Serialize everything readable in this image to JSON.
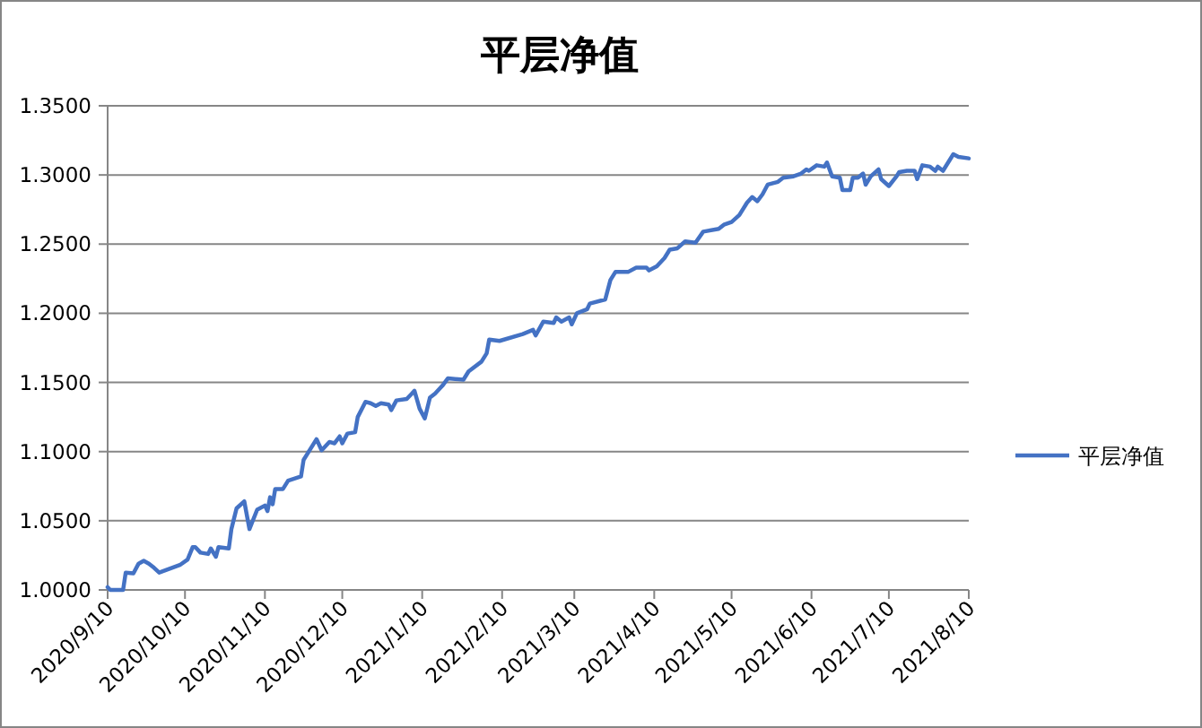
{
  "chart_data": {
    "type": "line",
    "title": "平层净值",
    "x": [
      "2020-09-10",
      "2020-09-11",
      "2020-09-16",
      "2020-09-17",
      "2020-09-20",
      "2020-09-22",
      "2020-09-24",
      "2020-09-26",
      "2020-09-28",
      "2020-09-30",
      "2020-10-08",
      "2020-10-11",
      "2020-10-13",
      "2020-10-14",
      "2020-10-16",
      "2020-10-19",
      "2020-10-20",
      "2020-10-22",
      "2020-10-23",
      "2020-10-27",
      "2020-10-28",
      "2020-10-30",
      "2020-11-02",
      "2020-11-04",
      "2020-11-07",
      "2020-11-10",
      "2020-11-11",
      "2020-11-12",
      "2020-11-13",
      "2020-11-14",
      "2020-11-17",
      "2020-11-19",
      "2020-11-24",
      "2020-11-25",
      "2020-11-30",
      "2020-12-02",
      "2020-12-05",
      "2020-12-07",
      "2020-12-09",
      "2020-12-10",
      "2020-12-12",
      "2020-12-15",
      "2020-12-16",
      "2020-12-19",
      "2020-12-21",
      "2020-12-23",
      "2020-12-25",
      "2020-12-28",
      "2020-12-29",
      "2020-12-31",
      "2021-01-04",
      "2021-01-06",
      "2021-01-07",
      "2021-01-09",
      "2021-01-11",
      "2021-01-13",
      "2021-01-15",
      "2021-01-17",
      "2021-01-18",
      "2021-01-20",
      "2021-01-26",
      "2021-01-28",
      "2021-02-02",
      "2021-02-04",
      "2021-02-05",
      "2021-02-09",
      "2021-02-18",
      "2021-02-22",
      "2021-02-23",
      "2021-02-26",
      "2021-03-02",
      "2021-03-03",
      "2021-03-05",
      "2021-03-08",
      "2021-03-09",
      "2021-03-11",
      "2021-03-15",
      "2021-03-16",
      "2021-03-22",
      "2021-03-24",
      "2021-03-26",
      "2021-03-31",
      "2021-04-03",
      "2021-04-07",
      "2021-04-08",
      "2021-04-11",
      "2021-04-14",
      "2021-04-16",
      "2021-04-19",
      "2021-04-22",
      "2021-04-26",
      "2021-04-29",
      "2021-05-05",
      "2021-05-07",
      "2021-05-10",
      "2021-05-13",
      "2021-05-16",
      "2021-05-18",
      "2021-05-20",
      "2021-05-22",
      "2021-05-24",
      "2021-05-28",
      "2021-05-30",
      "2021-06-03",
      "2021-06-06",
      "2021-06-08",
      "2021-06-09",
      "2021-06-12",
      "2021-06-15",
      "2021-06-16",
      "2021-06-18",
      "2021-06-21",
      "2021-06-22",
      "2021-06-25",
      "2021-06-26",
      "2021-06-28",
      "2021-06-30",
      "2021-07-01",
      "2021-07-03",
      "2021-07-06",
      "2021-07-07",
      "2021-07-10",
      "2021-07-13",
      "2021-07-14",
      "2021-07-17",
      "2021-07-20",
      "2021-07-21",
      "2021-07-23",
      "2021-07-26",
      "2021-07-28",
      "2021-07-29",
      "2021-07-31",
      "2021-08-04",
      "2021-08-06",
      "2021-08-10"
    ],
    "series": [
      {
        "name": "平层净值",
        "color": "#4472c4",
        "values": [
          1.002,
          1.0,
          1.0,
          1.0125,
          1.012,
          1.019,
          1.021,
          1.019,
          1.016,
          1.0125,
          1.018,
          1.022,
          1.031,
          1.031,
          1.027,
          1.026,
          1.03,
          1.024,
          1.031,
          1.03,
          1.044,
          1.059,
          1.064,
          1.044,
          1.058,
          1.061,
          1.057,
          1.067,
          1.062,
          1.073,
          1.073,
          1.079,
          1.082,
          1.094,
          1.109,
          1.101,
          1.107,
          1.106,
          1.111,
          1.106,
          1.113,
          1.114,
          1.125,
          1.136,
          1.135,
          1.133,
          1.135,
          1.134,
          1.13,
          1.137,
          1.138,
          1.142,
          1.144,
          1.131,
          1.124,
          1.139,
          1.142,
          1.146,
          1.148,
          1.153,
          1.152,
          1.158,
          1.165,
          1.171,
          1.181,
          1.18,
          1.185,
          1.188,
          1.184,
          1.194,
          1.193,
          1.197,
          1.194,
          1.197,
          1.192,
          1.2,
          1.203,
          1.207,
          1.21,
          1.224,
          1.23,
          1.23,
          1.233,
          1.233,
          1.231,
          1.234,
          1.24,
          1.246,
          1.247,
          1.252,
          1.251,
          1.259,
          1.261,
          1.264,
          1.266,
          1.271,
          1.28,
          1.284,
          1.281,
          1.286,
          1.293,
          1.295,
          1.298,
          1.299,
          1.301,
          1.304,
          1.303,
          1.307,
          1.306,
          1.309,
          1.299,
          1.298,
          1.289,
          1.289,
          1.298,
          1.298,
          1.301,
          1.293,
          1.299,
          1.304,
          1.297,
          1.292,
          1.299,
          1.302,
          1.303,
          1.303,
          1.297,
          1.307,
          1.306,
          1.303,
          1.306,
          1.303,
          1.315,
          1.313,
          1.312
        ]
      }
    ],
    "xlim": [
      "2020-09-10",
      "2021-08-10"
    ],
    "xticks": [
      {
        "value": "2020-09-10",
        "label": "2020/9/10"
      },
      {
        "value": "2020-10-10",
        "label": "2020/10/10"
      },
      {
        "value": "2020-11-10",
        "label": "2020/11/10"
      },
      {
        "value": "2020-12-10",
        "label": "2020/12/10"
      },
      {
        "value": "2021-01-10",
        "label": "2021/1/10"
      },
      {
        "value": "2021-02-10",
        "label": "2021/2/10"
      },
      {
        "value": "2021-03-10",
        "label": "2021/3/10"
      },
      {
        "value": "2021-04-10",
        "label": "2021/4/10"
      },
      {
        "value": "2021-05-10",
        "label": "2021/5/10"
      },
      {
        "value": "2021-06-10",
        "label": "2021/6/10"
      },
      {
        "value": "2021-07-10",
        "label": "2021/7/10"
      },
      {
        "value": "2021-08-10",
        "label": "2021/8/10"
      }
    ],
    "ylim": [
      1.0,
      1.35
    ],
    "yticks": [
      {
        "value": 1.0,
        "label": "1.0000"
      },
      {
        "value": 1.05,
        "label": "1.0500"
      },
      {
        "value": 1.1,
        "label": "1.1000"
      },
      {
        "value": 1.15,
        "label": "1.1500"
      },
      {
        "value": 1.2,
        "label": "1.2000"
      },
      {
        "value": 1.25,
        "label": "1.2500"
      },
      {
        "value": 1.3,
        "label": "1.3000"
      },
      {
        "value": 1.35,
        "label": "1.3500"
      }
    ],
    "grid": "y",
    "legend": "right",
    "marker": "none",
    "line_style": "solid"
  }
}
